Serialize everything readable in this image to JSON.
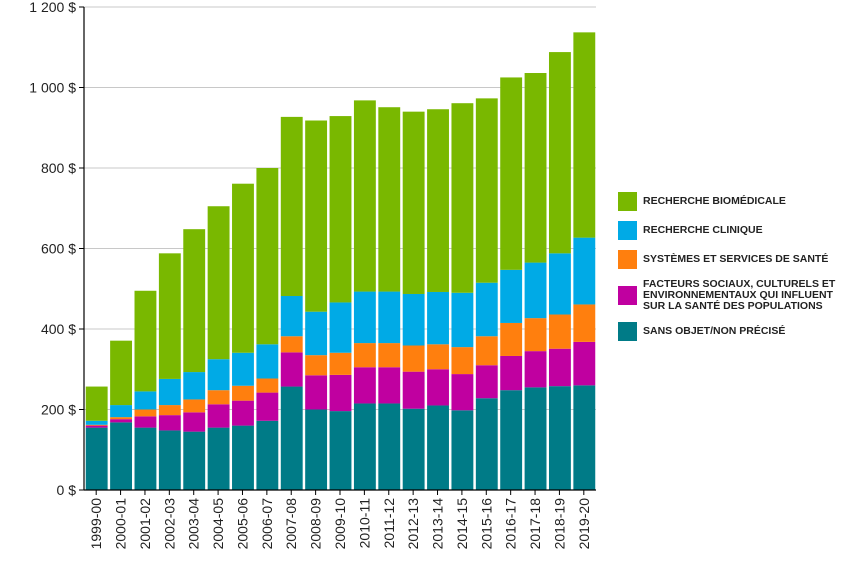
{
  "chart_data": {
    "type": "bar",
    "stacked": true,
    "categories": [
      "1999-00",
      "2000-01",
      "2001-02",
      "2002-03",
      "2003-04",
      "2004-05",
      "2005-06",
      "2006-07",
      "2007-08",
      "2008-09",
      "2009-10",
      "2010-11",
      "2011-12",
      "2012-13",
      "2013-14",
      "2014-15",
      "2015-16",
      "2016-17",
      "2017-18",
      "2018-19",
      "2019-20"
    ],
    "series": [
      {
        "name": "SANS OBJET/NON PRÉCISÉ",
        "color": "#007b87",
        "values": [
          155,
          168,
          155,
          148,
          145,
          155,
          160,
          172,
          257,
          200,
          196,
          215,
          215,
          202,
          210,
          198,
          228,
          248,
          255,
          258,
          260
        ]
      },
      {
        "name": "FACTEURS SOCIAUX, CULTURELS ET ENVIRONNEMENTAUX QUI INFLUENT SUR LA SANTÉ DES POPULATIONS",
        "color": "#c000a0",
        "values": [
          5,
          8,
          28,
          38,
          48,
          58,
          62,
          70,
          85,
          85,
          90,
          90,
          90,
          92,
          90,
          90,
          82,
          85,
          90,
          93,
          108
        ]
      },
      {
        "name": "SYSTÈMES ET SERVICES DE SANTÉ",
        "color": "#ff7f0e",
        "values": [
          2,
          5,
          17,
          25,
          32,
          35,
          37,
          35,
          40,
          50,
          55,
          60,
          60,
          65,
          62,
          67,
          72,
          82,
          82,
          85,
          93
        ]
      },
      {
        "name": "RECHERCHE CLINIQUE",
        "color": "#00aae6",
        "values": [
          10,
          30,
          45,
          65,
          68,
          77,
          82,
          85,
          100,
          108,
          125,
          128,
          128,
          128,
          130,
          135,
          133,
          132,
          138,
          152,
          166
        ]
      },
      {
        "name": "RECHERCHE BIOMÉDICALE",
        "color": "#79b800",
        "values": [
          85,
          160,
          250,
          312,
          355,
          380,
          420,
          438,
          445,
          475,
          463,
          475,
          458,
          453,
          454,
          471,
          458,
          478,
          471,
          500,
          510
        ]
      }
    ],
    "legend_order": [
      4,
      3,
      2,
      1,
      0
    ],
    "legend_labels": [
      "RECHERCHE BIOMÉDICALE",
      "RECHERCHE CLINIQUE",
      "SYSTÈMES ET SERVICES DE SANTÉ",
      "FACTEURS SOCIAUX, CULTURELS ET\nENVIRONNEMENTAUX QUI INFLUENT\nSUR LA SANTÉ DES POPULATIONS",
      "SANS OBJET/NON PRÉCISÉ"
    ],
    "y_ticks": [
      0,
      200,
      400,
      600,
      800,
      1000,
      1200
    ],
    "y_tick_labels": [
      "0 $",
      "200 $",
      "400 $",
      "600 $",
      "800 $",
      "1 000 $",
      "1 200 $"
    ],
    "ylim": [
      0,
      1200
    ],
    "grid": true,
    "legend_position": "right"
  }
}
